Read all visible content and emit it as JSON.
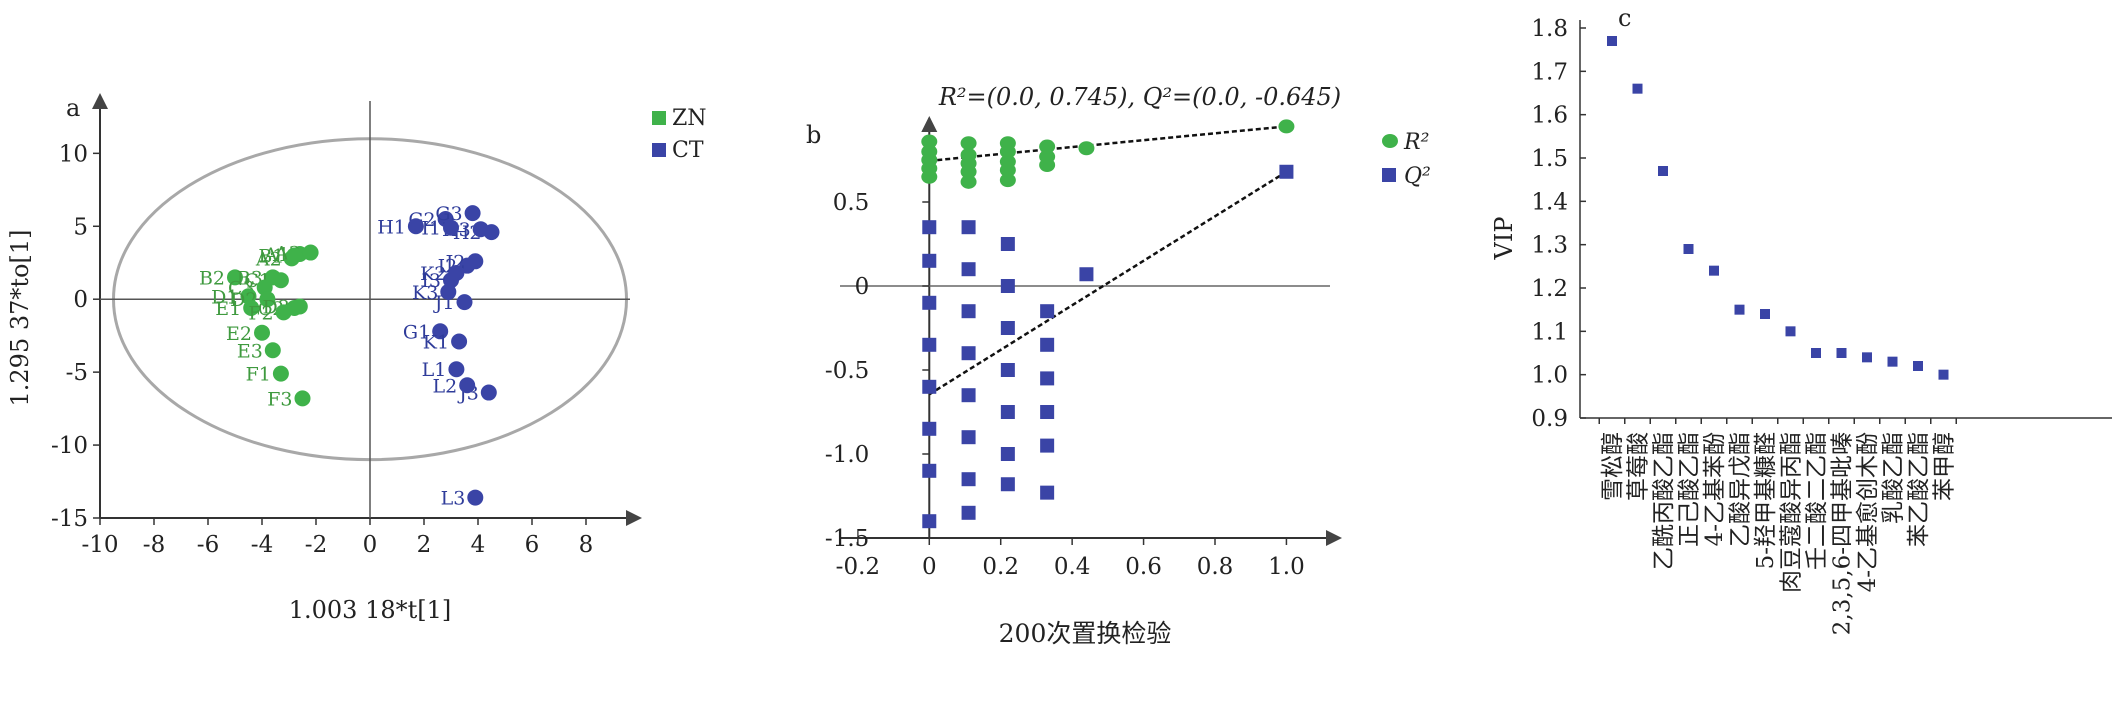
{
  "colors": {
    "green": "#3fb24a",
    "blue": "#3a44a6",
    "green_text": "#3f9a3f",
    "blue_text": "#2f3c9a",
    "axis": "#333333",
    "ellipse": "#a8a8a8"
  },
  "chart_data": [
    {
      "type": "scatter",
      "panel_label": "a",
      "title": "",
      "xlabel": "1.003 18*t[1]",
      "ylabel": "1.295 37*to[1]",
      "xlim": [
        -10,
        10
      ],
      "ylim": [
        -15,
        14
      ],
      "xticks": [
        "-10",
        "-8",
        "-6",
        "-4",
        "-2",
        "0",
        "2",
        "4",
        "6",
        "8"
      ],
      "yticks": [
        "10",
        "5",
        "0",
        "-5",
        "-10",
        "-15"
      ],
      "ellipse": {
        "cx": 0,
        "cy": 0,
        "rx": 9.5,
        "ry": 11
      },
      "legend": [
        "ZN",
        "CT"
      ],
      "legend_position": "top-right",
      "series": [
        {
          "name": "ZN",
          "points": [
            {
              "label": "A1",
              "x": -2.6,
              "y": 3.1
            },
            {
              "label": "A2",
              "x": -2.9,
              "y": 2.8
            },
            {
              "label": "A3",
              "x": -2.2,
              "y": 3.2
            },
            {
              "label": "B1",
              "x": -2.8,
              "y": 3.0
            },
            {
              "label": "B2",
              "x": -5.0,
              "y": 1.5
            },
            {
              "label": "B3",
              "x": -3.6,
              "y": 1.5
            },
            {
              "label": "C1",
              "x": -3.3,
              "y": 1.3
            },
            {
              "label": "C2",
              "x": -2.8,
              "y": -0.6
            },
            {
              "label": "C3",
              "x": -3.9,
              "y": 0.8
            },
            {
              "label": "D1",
              "x": -4.5,
              "y": 0.2
            },
            {
              "label": "D2",
              "x": -3.8,
              "y": 0.0
            },
            {
              "label": "D3",
              "x": -2.6,
              "y": -0.5
            },
            {
              "label": "E1",
              "x": -4.4,
              "y": -0.6
            },
            {
              "label": "E2",
              "x": -4.0,
              "y": -2.3
            },
            {
              "label": "E3",
              "x": -3.6,
              "y": -3.5
            },
            {
              "label": "F1",
              "x": -3.3,
              "y": -5.1
            },
            {
              "label": "F2",
              "x": -3.2,
              "y": -0.9
            },
            {
              "label": "F3",
              "x": -2.5,
              "y": -6.8
            }
          ]
        },
        {
          "name": "CT",
          "points": [
            {
              "label": "G1",
              "x": 2.6,
              "y": -2.2
            },
            {
              "label": "G2",
              "x": 2.8,
              "y": 5.5
            },
            {
              "label": "G3",
              "x": 3.8,
              "y": 5.9
            },
            {
              "label": "H1",
              "x": 1.7,
              "y": 5.0
            },
            {
              "label": "H2",
              "x": 4.5,
              "y": 4.6
            },
            {
              "label": "H3",
              "x": 4.1,
              "y": 4.8
            },
            {
              "label": "I1",
              "x": 3.0,
              "y": 4.9
            },
            {
              "label": "I2",
              "x": 3.6,
              "y": 2.3
            },
            {
              "label": "I3",
              "x": 3.0,
              "y": 1.3
            },
            {
              "label": "J1",
              "x": 3.5,
              "y": -0.2
            },
            {
              "label": "J2",
              "x": 3.9,
              "y": 2.6
            },
            {
              "label": "J3",
              "x": 4.4,
              "y": -6.4
            },
            {
              "label": "K1",
              "x": 3.3,
              "y": -2.9
            },
            {
              "label": "K2",
              "x": 3.2,
              "y": 1.8
            },
            {
              "label": "K3",
              "x": 2.9,
              "y": 0.5
            },
            {
              "label": "L1",
              "x": 3.2,
              "y": -4.8
            },
            {
              "label": "L2",
              "x": 3.6,
              "y": -5.9
            },
            {
              "label": "L3",
              "x": 3.9,
              "y": -13.6
            }
          ]
        }
      ]
    },
    {
      "type": "scatter",
      "panel_label": "b",
      "title": "R²=(0.0, 0.745), Q²=(0.0, -0.645)",
      "xlabel": "200次置换检验",
      "ylabel": "",
      "xlim": [
        -0.25,
        1.15
      ],
      "ylim": [
        -1.5,
        1.0
      ],
      "xticks": [
        "-0.2",
        "0",
        "0.2",
        "0.4",
        "0.6",
        "0.8",
        "1.0"
      ],
      "yticks": [
        "0.5",
        "0",
        "-0.5",
        "-1.0",
        "-1.5"
      ],
      "legend": [
        "R²",
        "Q²"
      ],
      "legend_position": "top-right",
      "series": [
        {
          "name": "R²",
          "points": [
            [
              0.0,
              0.65
            ],
            [
              0.0,
              0.7
            ],
            [
              0.0,
              0.75
            ],
            [
              0.0,
              0.8
            ],
            [
              0.0,
              0.86
            ],
            [
              0.11,
              0.62
            ],
            [
              0.11,
              0.68
            ],
            [
              0.11,
              0.73
            ],
            [
              0.11,
              0.78
            ],
            [
              0.11,
              0.85
            ],
            [
              0.22,
              0.63
            ],
            [
              0.22,
              0.69
            ],
            [
              0.22,
              0.74
            ],
            [
              0.22,
              0.8
            ],
            [
              0.22,
              0.85
            ],
            [
              0.33,
              0.72
            ],
            [
              0.33,
              0.77
            ],
            [
              0.33,
              0.83
            ],
            [
              0.44,
              0.82
            ],
            [
              1.0,
              0.95
            ]
          ],
          "regression": [
            [
              0.0,
              0.745
            ],
            [
              1.0,
              0.95
            ]
          ]
        },
        {
          "name": "Q²",
          "points": [
            [
              0.0,
              0.35
            ],
            [
              0.0,
              0.15
            ],
            [
              0.0,
              -0.1
            ],
            [
              0.0,
              -0.35
            ],
            [
              0.0,
              -0.6
            ],
            [
              0.0,
              -0.85
            ],
            [
              0.0,
              -1.1
            ],
            [
              0.0,
              -1.4
            ],
            [
              0.11,
              0.35
            ],
            [
              0.11,
              0.1
            ],
            [
              0.11,
              -0.15
            ],
            [
              0.11,
              -0.4
            ],
            [
              0.11,
              -0.65
            ],
            [
              0.11,
              -0.9
            ],
            [
              0.11,
              -1.15
            ],
            [
              0.11,
              -1.35
            ],
            [
              0.22,
              0.25
            ],
            [
              0.22,
              0.0
            ],
            [
              0.22,
              -0.25
            ],
            [
              0.22,
              -0.5
            ],
            [
              0.22,
              -0.75
            ],
            [
              0.22,
              -1.0
            ],
            [
              0.22,
              -1.18
            ],
            [
              0.33,
              -0.15
            ],
            [
              0.33,
              -0.35
            ],
            [
              0.33,
              -0.55
            ],
            [
              0.33,
              -0.75
            ],
            [
              0.33,
              -0.95
            ],
            [
              0.33,
              -1.23
            ],
            [
              0.44,
              0.07
            ],
            [
              1.0,
              0.68
            ]
          ],
          "regression": [
            [
              0.0,
              -0.645
            ],
            [
              1.0,
              0.68
            ]
          ]
        }
      ]
    },
    {
      "type": "scatter",
      "panel_label": "c",
      "title": "",
      "xlabel": "",
      "ylabel": "VIP",
      "ylim": [
        0.9,
        1.8
      ],
      "yticks": [
        "1.8",
        "1.7",
        "1.6",
        "1.5",
        "1.4",
        "1.3",
        "1.2",
        "1.1",
        "1.0",
        "0.9"
      ],
      "categories": [
        "雪松醇",
        "草莓酸",
        "乙酰丙酸乙酯",
        "正己酸乙酯",
        "4-乙基苯酚",
        "乙酸异戊酯",
        "5-羟甲基糠醛",
        "肉豆蔻酸异丙酯",
        "壬二酸二乙酯",
        "2,3,5,6-四甲基吡嗪",
        "4-乙基愈创木酚",
        "乳酸乙酯",
        "苯乙酸乙酯",
        "苯甲醇"
      ],
      "values": [
        1.77,
        1.66,
        1.47,
        1.29,
        1.24,
        1.15,
        1.14,
        1.1,
        1.05,
        1.05,
        1.04,
        1.03,
        1.02,
        1.0
      ]
    }
  ]
}
